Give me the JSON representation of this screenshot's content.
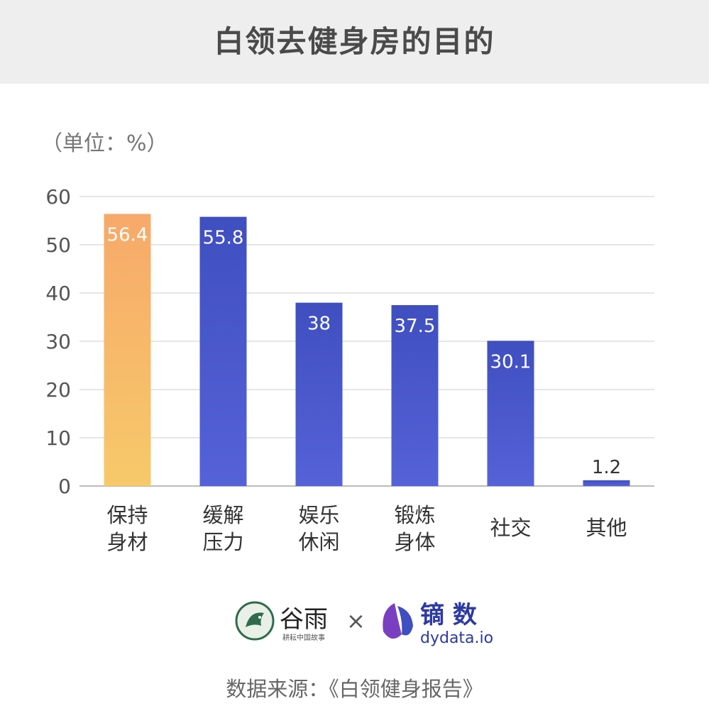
{
  "header": {
    "title": "白领去健身房的目的"
  },
  "chart_data": {
    "type": "bar",
    "title": "白领去健身房的目的",
    "unit_label": "（单位：%）",
    "categories": [
      [
        "保持",
        "身材"
      ],
      [
        "缓解",
        "压力"
      ],
      [
        "娱乐",
        "休闲"
      ],
      [
        "锻炼",
        "身体"
      ],
      [
        "社交"
      ],
      [
        "其他"
      ]
    ],
    "values": [
      56.4,
      55.8,
      38,
      37.5,
      30.1,
      1.2
    ],
    "value_labels": [
      "56.4",
      "55.8",
      "38",
      "37.5",
      "30.1",
      "1.2"
    ],
    "ylim": [
      0,
      60
    ],
    "yticks": [
      0,
      10,
      20,
      30,
      40,
      50,
      60
    ],
    "grid": true,
    "colors": {
      "highlight_top": "#f7a96a",
      "highlight_bottom": "#f7c96a",
      "bar_top": "#3f4fc0",
      "bar_bottom": "#5562d8",
      "grid": "#dddddd",
      "axis": "#bbbbbb"
    },
    "highlight_index": 0
  },
  "logos": {
    "left_brand": "谷雨",
    "left_sub": "耕耘中国故事",
    "times": "×",
    "right_brand": "镝 数",
    "right_sub": "dydata.io"
  },
  "footer": {
    "source": "数据来源：《白领健身报告》"
  }
}
